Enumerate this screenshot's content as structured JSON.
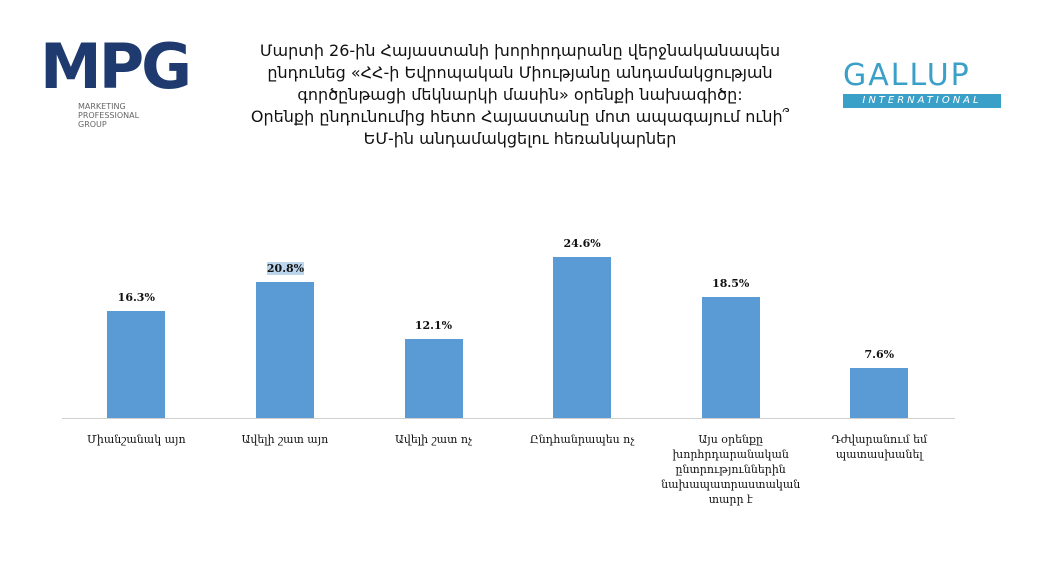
{
  "chart_data": {
    "type": "bar",
    "title": [
      "Մարտի 26-ին Հայաստանի խորհրդարանը վերջնականապես",
      "ընդունեց «ՀՀ-ի Եվրոպական Միությանը անդամակցության",
      "գործընթացի մեկնարկի մասին» օրենքի նախագիծը:",
      "Օրենքի ընդունումից հետո Հայաստանը մոտ ապագայում ունի՞",
      "ԵՄ-ին անդամակցելու հեռանկարներ"
    ],
    "categories": [
      "Միանշանակ այո",
      "Ավելի շատ այո",
      "Ավելի շատ ոչ",
      "Ընդհանրապես ոչ",
      "Այս օրենքը խորհրդարանական ընտրություններին նախապատրաստական տարր է",
      "Դժվարանում եմ պատասխանել"
    ],
    "values": [
      16.3,
      20.8,
      12.1,
      24.6,
      18.5,
      7.6
    ],
    "value_labels": [
      "16.3%",
      "20.8%",
      "12.1%",
      "24.6%",
      "18.5%",
      "7.6%"
    ],
    "color": "#5b9bd5"
  },
  "logos": {
    "mpg": {
      "mark": "MPG",
      "text": [
        "MARKETING",
        "PROFESSIONAL",
        "GROUP"
      ]
    },
    "gallup": {
      "name": "GALLUP",
      "sub": "INTERNATIONAL"
    }
  }
}
